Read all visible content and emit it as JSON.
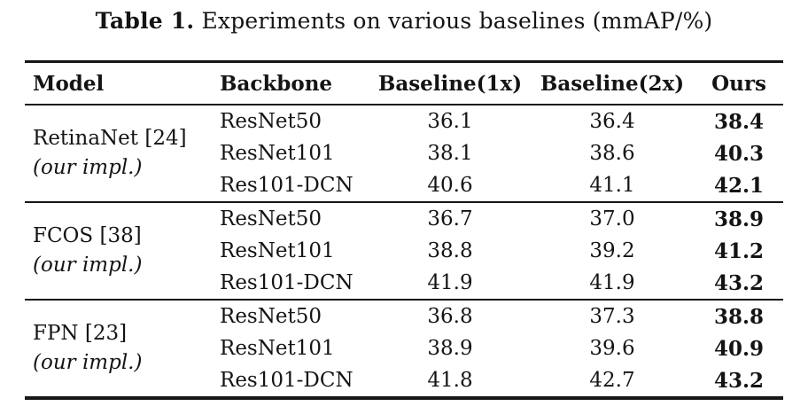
{
  "title": {
    "label": "Table 1.",
    "text": "Experiments on various baselines (mmAP/%)"
  },
  "colors": {
    "background": "#ffffff",
    "text": "#141414",
    "rule": "#161616"
  },
  "table": {
    "columns": [
      "Model",
      "Backbone",
      "Baseline(1x)",
      "Baseline(2x)",
      "Ours"
    ],
    "groups": [
      {
        "model": "RetinaNet [24]",
        "model_note": "(our impl.)",
        "rows": [
          {
            "backbone": "ResNet50",
            "baseline_1x": "36.1",
            "baseline_2x": "36.4",
            "ours": "38.4"
          },
          {
            "backbone": "ResNet101",
            "baseline_1x": "38.1",
            "baseline_2x": "38.6",
            "ours": "40.3"
          },
          {
            "backbone": "Res101-DCN",
            "baseline_1x": "40.6",
            "baseline_2x": "41.1",
            "ours": "42.1"
          }
        ]
      },
      {
        "model": "FCOS [38]",
        "model_note": "(our impl.)",
        "rows": [
          {
            "backbone": "ResNet50",
            "baseline_1x": "36.7",
            "baseline_2x": "37.0",
            "ours": "38.9"
          },
          {
            "backbone": "ResNet101",
            "baseline_1x": "38.8",
            "baseline_2x": "39.2",
            "ours": "41.2"
          },
          {
            "backbone": "Res101-DCN",
            "baseline_1x": "41.9",
            "baseline_2x": "41.9",
            "ours": "43.2"
          }
        ]
      },
      {
        "model": "FPN [23]",
        "model_note": "(our impl.)",
        "rows": [
          {
            "backbone": "ResNet50",
            "baseline_1x": "36.8",
            "baseline_2x": "37.3",
            "ours": "38.8"
          },
          {
            "backbone": "ResNet101",
            "baseline_1x": "38.9",
            "baseline_2x": "39.6",
            "ours": "40.9"
          },
          {
            "backbone": "Res101-DCN",
            "baseline_1x": "41.8",
            "baseline_2x": "42.7",
            "ours": "43.2"
          }
        ]
      }
    ]
  }
}
